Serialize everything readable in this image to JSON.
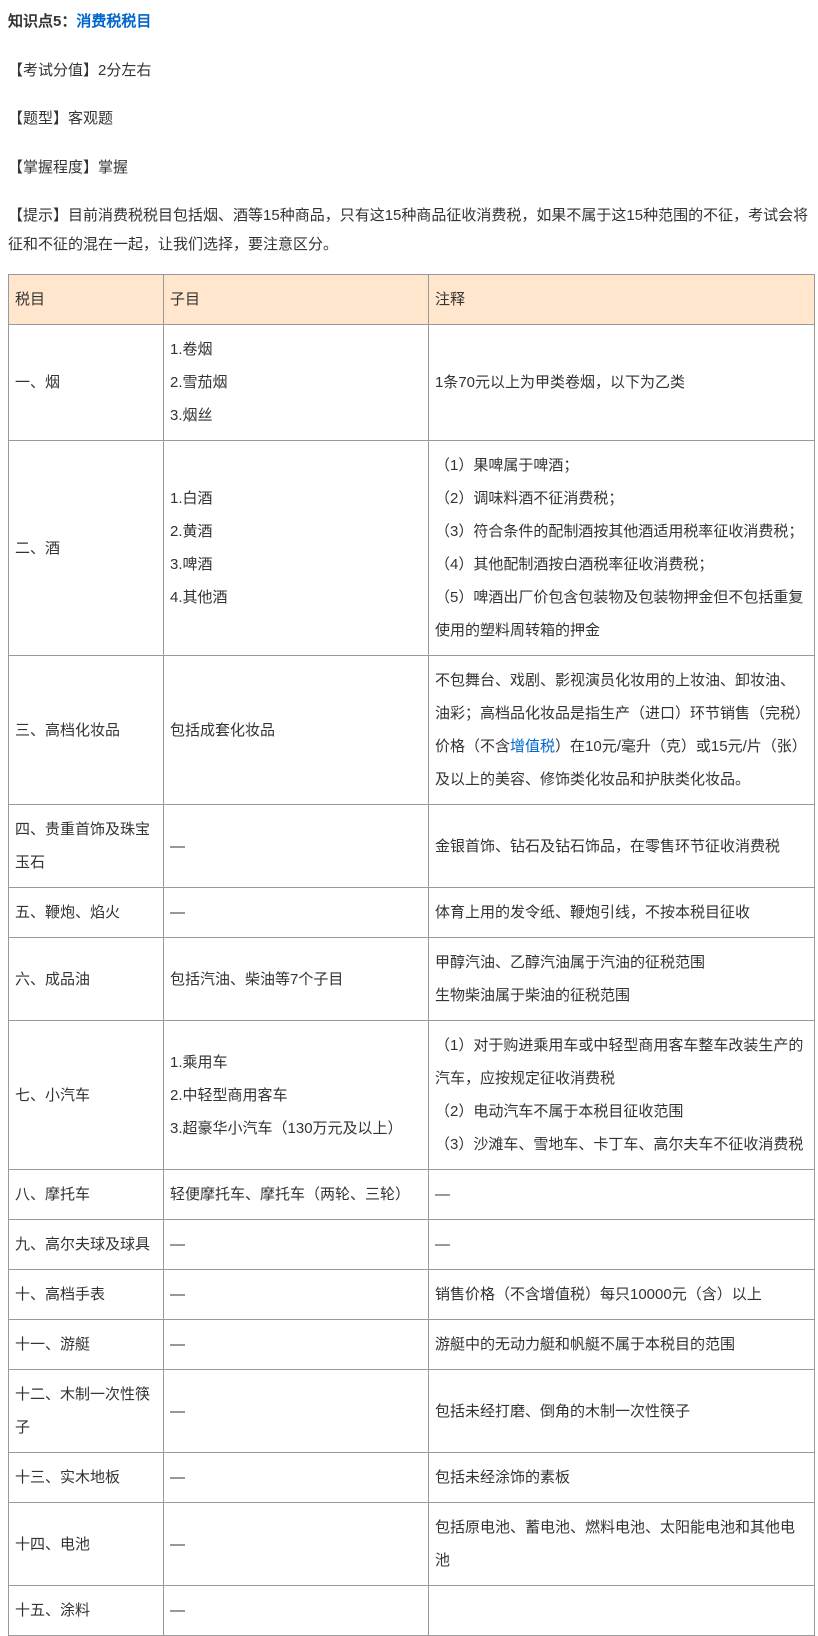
{
  "title": {
    "prefix": "知识点5：",
    "link": "消费税税目"
  },
  "meta": {
    "score_label": "【考试分值】",
    "score_value": "2分左右",
    "type_label": "【题型】",
    "type_value": "客观题",
    "mastery_label": "【掌握程度】",
    "mastery_value": "掌握",
    "tip_label": "【提示】",
    "tip_value": "目前消费税税目包括烟、酒等15种商品，只有这15种商品征收消费税，如果不属于这15种范围的不征，考试会将征和不征的混在一起，让我们选择，要注意区分。"
  },
  "table": {
    "header": {
      "c1": "税目",
      "c2": "子目",
      "c3": "注释"
    },
    "rows": [
      {
        "c1": "一、烟",
        "c2_lines": [
          "1.卷烟",
          "2.雪茄烟",
          "3.烟丝"
        ],
        "c3_lines": [
          "1条70元以上为甲类卷烟，以下为乙类"
        ]
      },
      {
        "c1": "二、酒",
        "c2_lines": [
          "1.白酒",
          "2.黄酒",
          "3.啤酒",
          "4.其他酒"
        ],
        "c3_lines": [
          "（1）果啤属于啤酒；",
          "（2）调味料酒不征消费税；",
          "（3）符合条件的配制酒按其他酒适用税率征收消费税；",
          "（4）其他配制酒按白酒税率征收消费税；",
          "（5）啤酒出厂价包含包装物及包装物押金但不包括重复使用的塑料周转箱的押金"
        ]
      },
      {
        "c1": "三、高档化妆品",
        "c2_lines": [
          "包括成套化妆品"
        ],
        "c3_pre": "不包舞台、戏剧、影视演员化妆用的上妆油、卸妆油、油彩；高档品化妆品是指生产（进口）环节销售（完税）价格（不含",
        "c3_link": "增值税",
        "c3_post": "）在10元/毫升（克）或15元/片（张）及以上的美容、修饰类化妆品和护肤类化妆品。"
      },
      {
        "c1": "四、贵重首饰及珠宝玉石",
        "c2_lines": [
          "—"
        ],
        "c3_lines": [
          "金银首饰、钻石及钻石饰品，在零售环节征收消费税"
        ]
      },
      {
        "c1": "五、鞭炮、焰火",
        "c2_lines": [
          "—"
        ],
        "c3_lines": [
          "体育上用的发令纸、鞭炮引线，不按本税目征收"
        ]
      },
      {
        "c1": "六、成品油",
        "c2_lines": [
          "包括汽油、柴油等7个子目"
        ],
        "c3_lines": [
          "甲醇汽油、乙醇汽油属于汽油的征税范围",
          "生物柴油属于柴油的征税范围"
        ]
      },
      {
        "c1": "七、小汽车",
        "c2_lines": [
          "1.乘用车",
          "2.中轻型商用客车",
          "3.超豪华小汽车（130万元及以上）"
        ],
        "c3_lines": [
          "（1）对于购进乘用车或中轻型商用客车整车改装生产的汽车，应按规定征收消费税",
          "（2）电动汽车不属于本税目征收范围",
          "（3）沙滩车、雪地车、卡丁车、高尔夫车不征收消费税"
        ]
      },
      {
        "c1": "八、摩托车",
        "c2_lines": [
          "轻便摩托车、摩托车（两轮、三轮）"
        ],
        "c3_lines": [
          "—"
        ]
      },
      {
        "c1": "九、高尔夫球及球具",
        "c2_lines": [
          "—"
        ],
        "c3_lines": [
          "—"
        ]
      },
      {
        "c1": "十、高档手表",
        "c2_lines": [
          "—"
        ],
        "c3_lines": [
          "销售价格（不含增值税）每只10000元（含）以上"
        ]
      },
      {
        "c1": "十一、游艇",
        "c2_lines": [
          "—"
        ],
        "c3_lines": [
          "游艇中的无动力艇和帆艇不属于本税目的范围"
        ]
      },
      {
        "c1": "十二、木制一次性筷子",
        "c2_lines": [
          "—"
        ],
        "c3_lines": [
          "包括未经打磨、倒角的木制一次性筷子"
        ]
      },
      {
        "c1": "十三、实木地板",
        "c2_lines": [
          "—"
        ],
        "c3_lines": [
          "包括未经涂饰的素板"
        ]
      },
      {
        "c1": "十四、电池",
        "c2_lines": [
          "—"
        ],
        "c3_lines": [
          "包括原电池、蓄电池、燃料电池、太阳能电池和其他电池"
        ]
      },
      {
        "c1": "十五、涂料",
        "c2_lines": [
          "—"
        ],
        "c3_lines": [
          ""
        ]
      }
    ]
  }
}
